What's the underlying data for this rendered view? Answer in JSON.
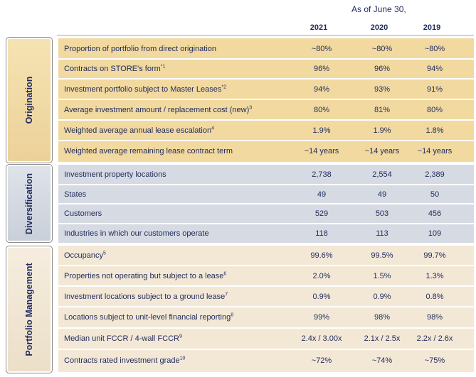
{
  "header": {
    "as_of": "As of June 30,",
    "years": [
      "2021",
      "2020",
      "2019"
    ]
  },
  "sections": [
    {
      "title": "Origination",
      "rows": [
        {
          "label": "Proportion of portfolio from direct origination",
          "sup": "",
          "values": [
            "~80%",
            "~80%",
            "~80%"
          ]
        },
        {
          "label": "Contracts on STORE's form",
          "sup": "*1",
          "values": [
            "96%",
            "96%",
            "94%"
          ]
        },
        {
          "label": "Investment portfolio subject to Master Leases",
          "sup": "*2",
          "values": [
            "94%",
            "93%",
            "91%"
          ]
        },
        {
          "label": "Average investment amount / replacement cost (new)",
          "sup": "3",
          "values": [
            "80%",
            "81%",
            "80%"
          ]
        },
        {
          "label": "Weighted average annual lease escalation",
          "sup": "4",
          "values": [
            "1.9%",
            "1.9%",
            "1.8%"
          ]
        },
        {
          "label": "Weighted average remaining lease contract term",
          "sup": "",
          "values": [
            "~14 years",
            "~14 years",
            "~14 years"
          ]
        }
      ]
    },
    {
      "title": "Diversification",
      "rows": [
        {
          "label": "Investment property locations",
          "sup": "",
          "values": [
            "2,738",
            "2,554",
            "2,389"
          ]
        },
        {
          "label": "States",
          "sup": "",
          "values": [
            "49",
            "49",
            "50"
          ]
        },
        {
          "label": "Customers",
          "sup": "",
          "values": [
            "529",
            "503",
            "456"
          ]
        },
        {
          "label": "Industries in which our customers operate",
          "sup": "",
          "values": [
            "118",
            "113",
            "109"
          ]
        }
      ]
    },
    {
      "title": "Portfolio Management",
      "rows": [
        {
          "label": "Occupancy",
          "sup": "5",
          "values": [
            "99.6%",
            "99.5%",
            "99.7%"
          ]
        },
        {
          "label": "Properties not operating but subject to a lease",
          "sup": "6",
          "values": [
            "2.0%",
            "1.5%",
            "1.3%"
          ]
        },
        {
          "label": "Investment locations subject to a ground lease",
          "sup": "7",
          "values": [
            "0.9%",
            "0.9%",
            "0.8%"
          ]
        },
        {
          "label": "Locations subject to unit-level financial reporting",
          "sup": "8",
          "values": [
            "99%",
            "98%",
            "98%"
          ]
        },
        {
          "label": "Median unit FCCR / 4-wall FCCR",
          "sup": "9",
          "values": [
            "2.4x / 3.00x",
            "2.1x / 2.5x",
            "2.2x / 2.6x"
          ]
        },
        {
          "label": "Contracts rated investment grade",
          "sup": "10",
          "values": [
            "~72%",
            "~74%",
            "~75%"
          ]
        }
      ]
    }
  ]
}
